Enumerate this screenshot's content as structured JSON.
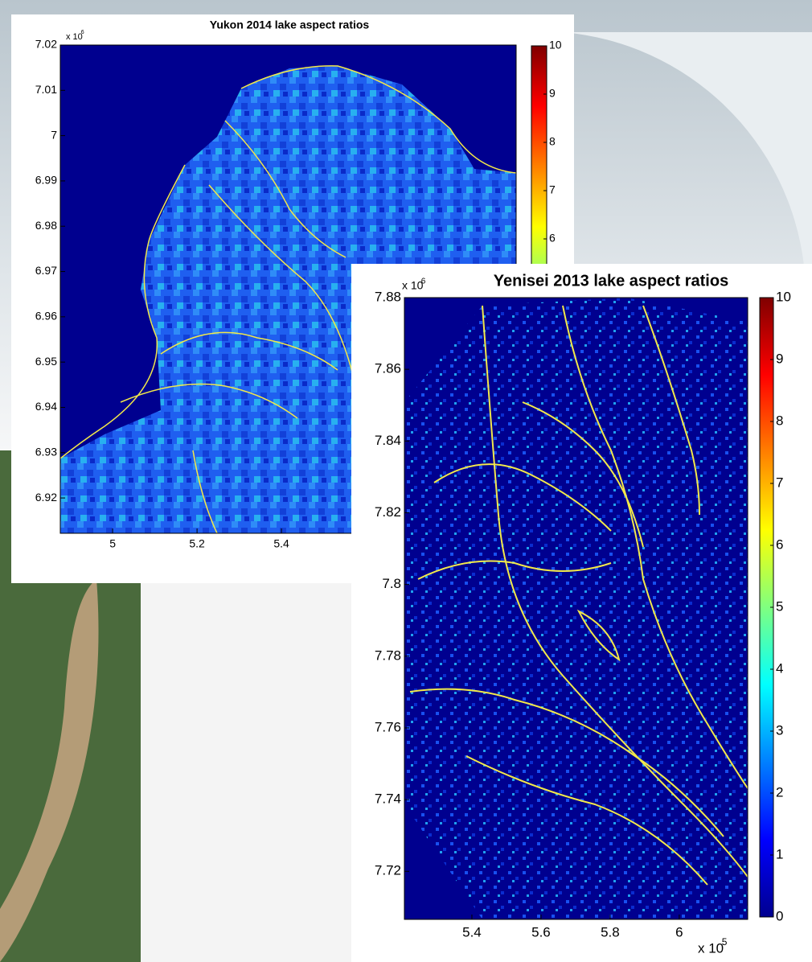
{
  "chart_data": [
    {
      "type": "heatmap",
      "title": "Yukon 2014 lake aspect ratios",
      "xlim": [
        4.876,
        5.956
      ],
      "xticks": [
        5,
        5.2,
        5.4
      ],
      "ylim": [
        6.9122,
        7.02
      ],
      "yticks": [
        7.02,
        7.01,
        7,
        6.99,
        6.98,
        6.97,
        6.96,
        6.95,
        6.94,
        6.93,
        6.92
      ],
      "y_scale_label": "x 10",
      "y_scale_exponent": "6",
      "colorbar": {
        "clim": [
          0,
          10
        ],
        "ticks": [
          10,
          9,
          8,
          7,
          6
        ],
        "colormap": "jet"
      }
    },
    {
      "type": "heatmap",
      "title": "Yenisei 2013 lake aspect ratios",
      "xlim": [
        5.2047,
        6.198
      ],
      "xticks": [
        5.4,
        5.6,
        5.8,
        6
      ],
      "ylim": [
        7.7066,
        7.88
      ],
      "yticks": [
        7.88,
        7.86,
        7.84,
        7.82,
        7.8,
        7.78,
        7.76,
        7.74,
        7.72
      ],
      "y_scale_label": "x 10",
      "y_scale_exponent": "6",
      "x_scale_label": "x 10",
      "x_scale_exponent": "5",
      "colorbar": {
        "clim": [
          0,
          10
        ],
        "ticks": [
          10,
          9,
          8,
          7,
          6,
          5,
          4,
          3,
          2,
          1,
          0
        ],
        "colormap": "jet"
      }
    }
  ]
}
